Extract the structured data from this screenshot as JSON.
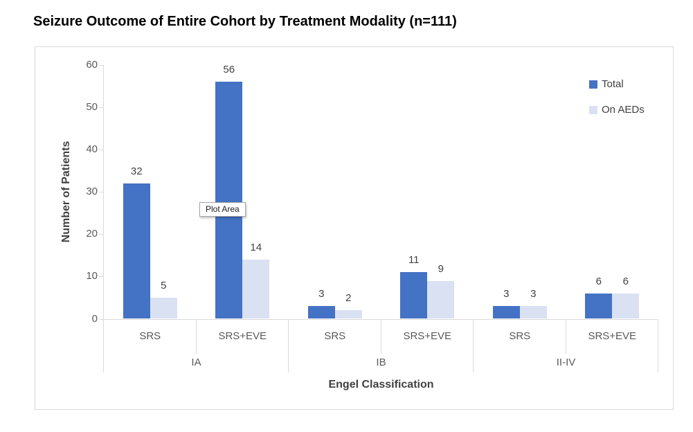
{
  "chart": {
    "tooltip": "Plot Area",
    "colors": {
      "total": "#4472C4",
      "on_aeds": "#DAE1F2",
      "axis_line": "#D9D9D9",
      "tick_text": "#595959",
      "label_text": "#404040",
      "title_text": "#000000"
    }
  },
  "chart_data": {
    "type": "bar",
    "title": "Seizure Outcome of Entire Cohort by Treatment Modality (n=111)",
    "xlabel": "Engel Classification",
    "ylabel": "Number of Patients",
    "ylim": [
      0,
      60
    ],
    "yticks": [
      0,
      10,
      20,
      30,
      40,
      50,
      60
    ],
    "grid": false,
    "legend_position": "top-right",
    "groups": [
      "IA",
      "IB",
      "II-IV"
    ],
    "categories": [
      "SRS",
      "SRS+EVE",
      "SRS",
      "SRS+EVE",
      "SRS",
      "SRS+EVE"
    ],
    "series": [
      {
        "name": "Total",
        "color": "#4472C4",
        "values": [
          32,
          56,
          3,
          11,
          3,
          6
        ]
      },
      {
        "name": "On AEDs",
        "color": "#DAE1F2",
        "values": [
          5,
          14,
          2,
          9,
          3,
          6
        ]
      }
    ]
  }
}
